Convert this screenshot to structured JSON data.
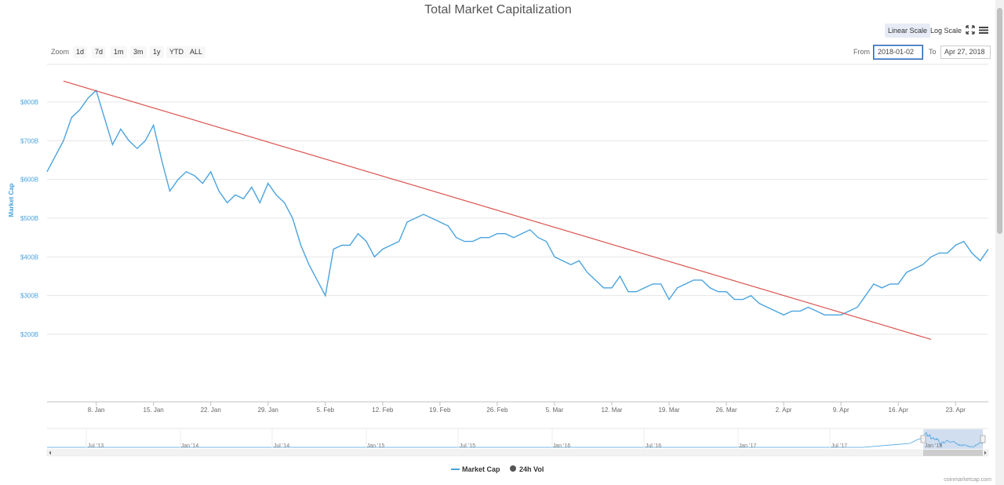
{
  "header": {
    "title": "Total Market Capitalization",
    "linear_scale": "Linear Scale",
    "log_scale": "Log Scale"
  },
  "toolbar": {
    "zoom_label": "Zoom",
    "zoom_buttons": [
      "1d",
      "7d",
      "1m",
      "3m",
      "1y",
      "YTD",
      "ALL"
    ],
    "from_label": "From",
    "from_value": "2018-01-02",
    "to_label": "To",
    "to_value": "Apr 27, 2018"
  },
  "footer": {
    "credit": "coinmarketcap.com"
  },
  "colors": {
    "series": "#4aa3df",
    "trendline": "#d9534f",
    "axis_text": "#4aa3df",
    "grid": "#e6e6e6",
    "navigator_mask": "#b3c8e6"
  },
  "icons": {
    "fullscreen": "expand-arrows-icon",
    "menu": "hamburger-menu-icon"
  },
  "chart_data": {
    "type": "line",
    "title": "Total Market Capitalization",
    "ylabel": "Market Cap",
    "y_ticks": [
      "$200B",
      "$300B",
      "$400B",
      "$500B",
      "$600B",
      "$700B",
      "$800B"
    ],
    "x_ticks": [
      "8. Jan",
      "15. Jan",
      "22. Jan",
      "29. Jan",
      "5. Feb",
      "12. Feb",
      "19. Feb",
      "26. Feb",
      "5. Mar",
      "12. Mar",
      "19. Mar",
      "26. Mar",
      "2. Apr",
      "9. Apr",
      "16. Apr",
      "23. Apr"
    ],
    "x_range": [
      "2018-01-02",
      "2018-04-27"
    ],
    "y_range": [
      200,
      800
    ],
    "y_unit": "B USD",
    "grid": true,
    "legend": [
      "Market Cap",
      "24h Vol"
    ],
    "legend_position": "bottom-center",
    "series": [
      {
        "name": "Market Cap",
        "x": [
          "2018-01-02",
          "2018-01-04",
          "2018-01-05",
          "2018-01-06",
          "2018-01-07",
          "2018-01-08",
          "2018-01-09",
          "2018-01-10",
          "2018-01-11",
          "2018-01-12",
          "2018-01-13",
          "2018-01-14",
          "2018-01-15",
          "2018-01-16",
          "2018-01-17",
          "2018-01-18",
          "2018-01-19",
          "2018-01-20",
          "2018-01-21",
          "2018-01-22",
          "2018-01-23",
          "2018-01-24",
          "2018-01-25",
          "2018-01-26",
          "2018-01-27",
          "2018-01-28",
          "2018-01-29",
          "2018-01-30",
          "2018-01-31",
          "2018-02-01",
          "2018-02-02",
          "2018-02-03",
          "2018-02-04",
          "2018-02-05",
          "2018-02-06",
          "2018-02-07",
          "2018-02-08",
          "2018-02-09",
          "2018-02-10",
          "2018-02-11",
          "2018-02-12",
          "2018-02-13",
          "2018-02-14",
          "2018-02-15",
          "2018-02-16",
          "2018-02-17",
          "2018-02-18",
          "2018-02-19",
          "2018-02-20",
          "2018-02-21",
          "2018-02-22",
          "2018-02-23",
          "2018-02-24",
          "2018-02-25",
          "2018-02-26",
          "2018-02-27",
          "2018-02-28",
          "2018-03-01",
          "2018-03-02",
          "2018-03-03",
          "2018-03-04",
          "2018-03-05",
          "2018-03-06",
          "2018-03-07",
          "2018-03-08",
          "2018-03-09",
          "2018-03-10",
          "2018-03-11",
          "2018-03-12",
          "2018-03-13",
          "2018-03-14",
          "2018-03-15",
          "2018-03-16",
          "2018-03-17",
          "2018-03-18",
          "2018-03-19",
          "2018-03-20",
          "2018-03-21",
          "2018-03-22",
          "2018-03-23",
          "2018-03-24",
          "2018-03-25",
          "2018-03-26",
          "2018-03-27",
          "2018-03-28",
          "2018-03-29",
          "2018-03-30",
          "2018-03-31",
          "2018-04-01",
          "2018-04-02",
          "2018-04-03",
          "2018-04-04",
          "2018-04-05",
          "2018-04-06",
          "2018-04-07",
          "2018-04-08",
          "2018-04-09",
          "2018-04-10",
          "2018-04-11",
          "2018-04-12",
          "2018-04-13",
          "2018-04-14",
          "2018-04-15",
          "2018-04-16",
          "2018-04-17",
          "2018-04-18",
          "2018-04-19",
          "2018-04-20",
          "2018-04-21",
          "2018-04-22",
          "2018-04-23",
          "2018-04-24",
          "2018-04-25",
          "2018-04-26",
          "2018-04-27"
        ],
        "values": [
          620,
          700,
          760,
          780,
          810,
          830,
          760,
          690,
          730,
          700,
          680,
          700,
          740,
          650,
          570,
          600,
          620,
          610,
          590,
          620,
          570,
          540,
          560,
          550,
          580,
          540,
          590,
          560,
          540,
          500,
          430,
          380,
          340,
          300,
          420,
          430,
          430,
          460,
          440,
          400,
          420,
          430,
          440,
          490,
          500,
          510,
          500,
          490,
          480,
          450,
          440,
          440,
          450,
          450,
          460,
          460,
          450,
          460,
          470,
          450,
          440,
          400,
          390,
          380,
          390,
          360,
          340,
          320,
          320,
          350,
          310,
          310,
          320,
          330,
          330,
          290,
          320,
          330,
          340,
          340,
          320,
          310,
          310,
          290,
          290,
          300,
          280,
          270,
          260,
          250,
          260,
          260,
          270,
          260,
          250,
          250,
          250,
          260,
          270,
          300,
          330,
          320,
          330,
          330,
          360,
          370,
          380,
          400,
          410,
          410,
          430,
          440,
          410,
          390,
          420
        ]
      },
      {
        "name": "Trend line",
        "x": [
          "2018-01-04",
          "2018-04-20"
        ],
        "values": [
          854,
          187
        ]
      }
    ]
  }
}
